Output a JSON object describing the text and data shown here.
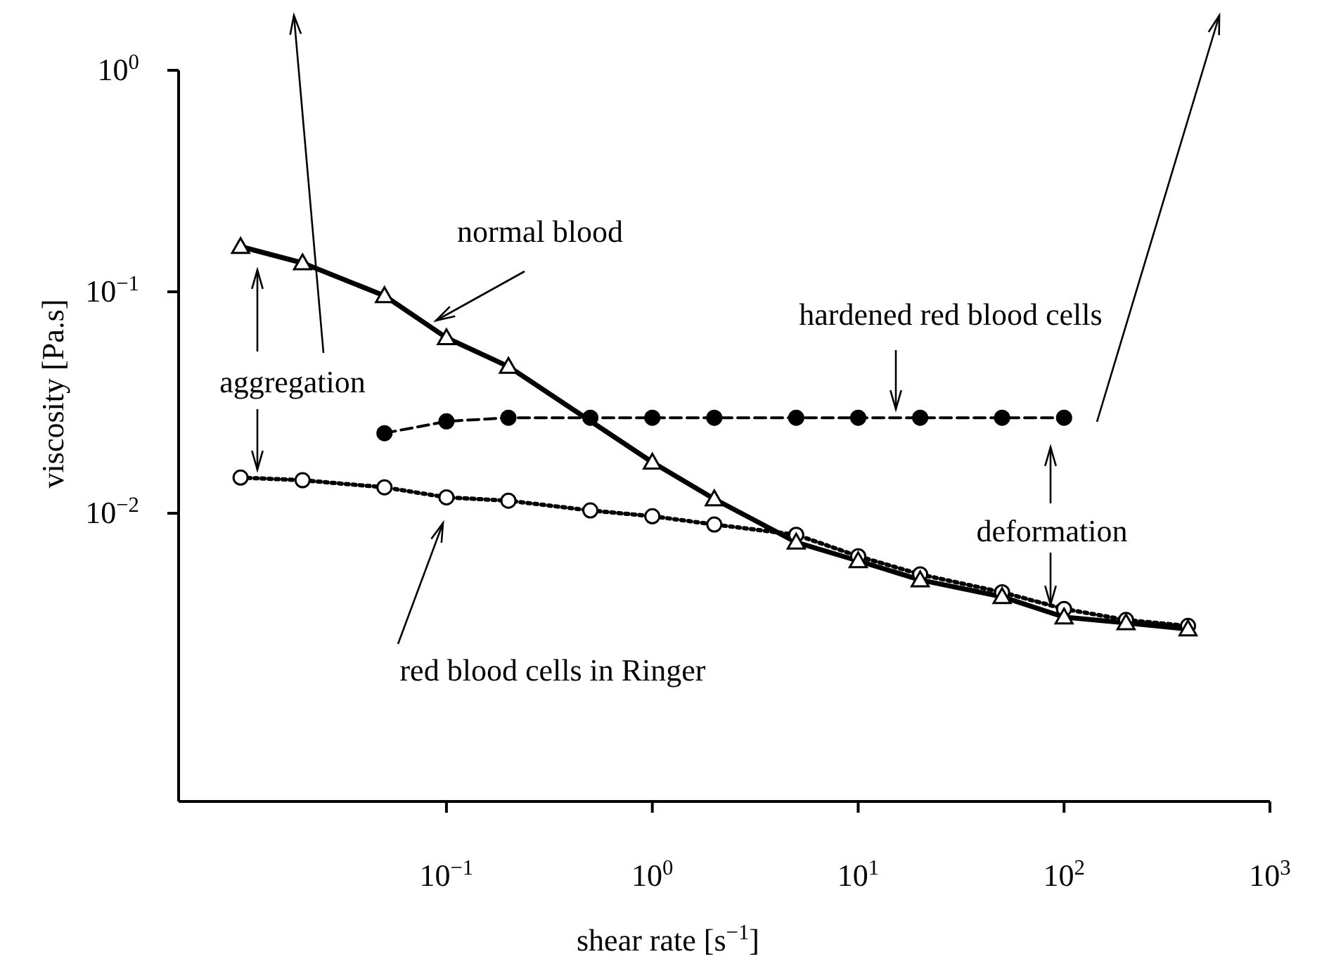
{
  "chart_data": {
    "type": "line",
    "xlabel": "shear rate [s$^{−1}$]",
    "ylabel": "viscosity [Pa.s]",
    "log": "xy",
    "xlim": [
      0.005,
      1000
    ],
    "ylim": [
      0.0005,
      1
    ],
    "xticks": [
      {
        "value": 0.1,
        "label": "10$^{−1}$"
      },
      {
        "value": 1,
        "label": "10$^{0}$"
      },
      {
        "value": 10,
        "label": "10$^{1}$"
      },
      {
        "value": 100,
        "label": "10$^{2}$"
      },
      {
        "value": 1000,
        "label": "10$^{3}$"
      }
    ],
    "yticks": [
      {
        "value": 0.01,
        "label": "10$^{−2}$"
      },
      {
        "value": 0.1,
        "label": "10$^{−1}$"
      },
      {
        "value": 1,
        "label": "10$^{0}$"
      }
    ],
    "series": [
      {
        "name": "normal blood",
        "color": "#000000",
        "marker": "triangle",
        "line_style": "solid",
        "x": [
          0.01,
          0.02,
          0.05,
          0.1,
          0.2,
          1,
          2,
          5,
          10,
          20,
          50,
          100,
          200,
          400
        ],
        "values": [
          0.16,
          0.135,
          0.096,
          0.062,
          0.046,
          0.017,
          0.0116,
          0.0074,
          0.0061,
          0.005,
          0.0042,
          0.0034,
          0.0032,
          0.003
        ]
      },
      {
        "name": "hardened red blood cells",
        "color": "#000000",
        "marker": "circle",
        "line_style": "dashed",
        "x": [
          0.05,
          0.1,
          0.2,
          0.5,
          1,
          2,
          5,
          10,
          20,
          50,
          100
        ],
        "values": [
          0.023,
          0.026,
          0.027,
          0.027,
          0.027,
          0.027,
          0.027,
          0.027,
          0.027,
          0.027,
          0.027
        ]
      },
      {
        "name": "red blood cells in Ringer",
        "color": "#000000",
        "marker": "circle",
        "line_style": "dotted",
        "x": [
          0.01,
          0.02,
          0.05,
          0.1,
          0.2,
          0.5,
          1,
          2,
          5,
          10,
          20,
          50,
          100,
          200,
          400
        ],
        "values": [
          0.0145,
          0.0141,
          0.0131,
          0.0118,
          0.0114,
          0.0103,
          0.0097,
          0.0089,
          0.008,
          0.0064,
          0.0053,
          0.0044,
          0.0037,
          0.0033,
          0.0031
        ]
      }
    ],
    "annotations": [
      "aggregation",
      "deformation"
    ]
  }
}
